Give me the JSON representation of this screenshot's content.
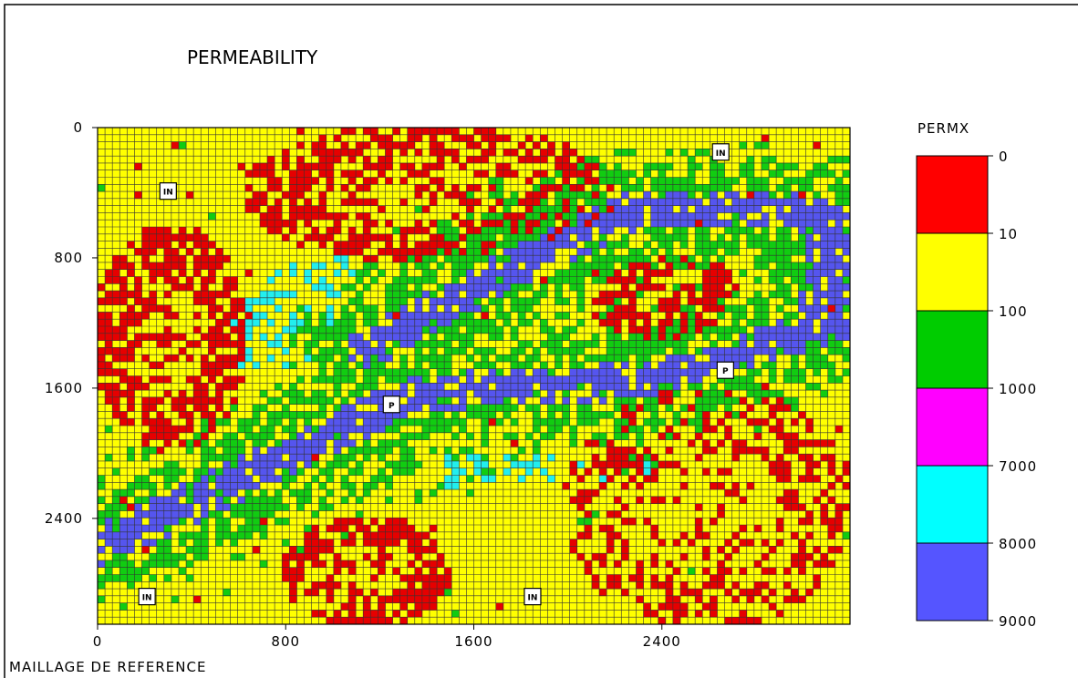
{
  "chart_data": {
    "type": "heatmap",
    "title": "PERMEABILITY",
    "footer": "MAILLAGE DE REFERENCE",
    "x_ticks": [
      0,
      800,
      1600,
      2400
    ],
    "y_ticks": [
      0,
      800,
      1600,
      2400
    ],
    "xlim": [
      0,
      3200
    ],
    "ylim": [
      0,
      3050
    ],
    "y_axis_inverted": true,
    "grid": true,
    "legend": {
      "title": "PERMX",
      "position": "right",
      "boundaries": [
        "0",
        "10",
        "100",
        "1000",
        "7000",
        "8000",
        "9000"
      ],
      "colors": [
        "#ff0000",
        "#ffff00",
        "#00cc00",
        "#ff00ff",
        "#00ffff",
        "#5555ff"
      ]
    },
    "palette": {
      "red": "#e60000",
      "yellow": "#ffff00",
      "green": "#11cc11",
      "cyan": "#22eeee",
      "blue": "#5555ee",
      "grid_line": "#333333"
    },
    "wells": [
      {
        "label": "IN",
        "x": 300,
        "y": 390
      },
      {
        "label": "IN",
        "x": 2650,
        "y": 150
      },
      {
        "label": "P",
        "x": 1250,
        "y": 1700
      },
      {
        "label": "P",
        "x": 2670,
        "y": 1490
      },
      {
        "label": "IN",
        "x": 210,
        "y": 2880
      },
      {
        "label": "IN",
        "x": 1850,
        "y": 2880
      }
    ],
    "zones": [
      {
        "category": "red",
        "label": "top-center-arc",
        "x": [
          620,
          2200
        ],
        "y": [
          0,
          810
        ],
        "density": 0.55
      },
      {
        "category": "red",
        "label": "left-block",
        "x": [
          0,
          620
        ],
        "y": [
          600,
          1970
        ],
        "density": 0.55
      },
      {
        "category": "red",
        "label": "right-upper-oval",
        "x": [
          2100,
          2720
        ],
        "y": [
          780,
          1300
        ],
        "density": 0.55
      },
      {
        "category": "red",
        "label": "right-lower",
        "x": [
          2000,
          3200
        ],
        "y": [
          1620,
          3050
        ],
        "density": 0.3
      },
      {
        "category": "red",
        "label": "bottom-center",
        "x": [
          780,
          1500
        ],
        "y": [
          2400,
          3050
        ],
        "density": 0.55
      },
      {
        "category": "green",
        "label": "upper-channel-band",
        "x": [
          1000,
          3200
        ],
        "y": [
          200,
          1700
        ],
        "density": 0.45
      },
      {
        "category": "green",
        "label": "diag-channel-band",
        "x": [
          0,
          1400
        ],
        "y": [
          1550,
          2700
        ],
        "density": 0.45
      },
      {
        "category": "green",
        "label": "lower-diag-band",
        "x": [
          1300,
          2400
        ],
        "y": [
          1800,
          3050
        ],
        "density": 0.35
      },
      {
        "category": "cyan",
        "label": "upper-left-fan",
        "x": [
          570,
          1100
        ],
        "y": [
          500,
          1500
        ],
        "density": 0.25
      },
      {
        "category": "cyan",
        "label": "lower-right-fan",
        "x": [
          1400,
          2350
        ],
        "y": [
          2000,
          3050
        ],
        "density": 0.25
      },
      {
        "category": "blue",
        "label": "main-channel",
        "x": [
          0,
          3200
        ],
        "y": [
          400,
          2600
        ],
        "density": 0.8
      }
    ],
    "channel_path": [
      [
        0,
        2580
      ],
      [
        550,
        2200
      ],
      [
        1300,
        1660
      ],
      [
        1600,
        1600
      ],
      [
        2300,
        1560
      ],
      [
        2700,
        1400
      ],
      [
        3120,
        1200
      ]
    ],
    "upper_channel_path": [
      [
        1150,
        1350
      ],
      [
        1700,
        900
      ],
      [
        2300,
        500
      ],
      [
        2950,
        480
      ],
      [
        3120,
        600
      ],
      [
        3100,
        1150
      ]
    ]
  }
}
